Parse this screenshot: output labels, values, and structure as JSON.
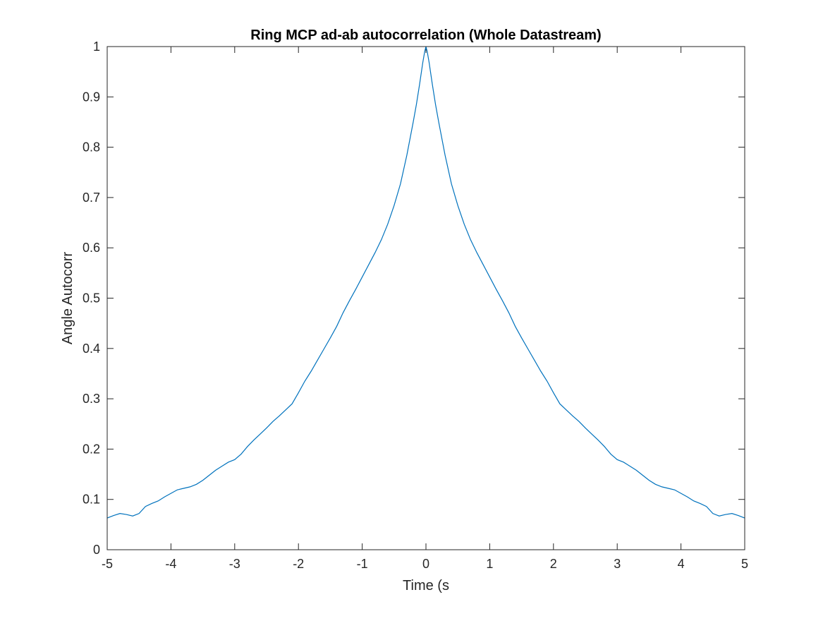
{
  "chart_data": {
    "type": "line",
    "title": "Ring MCP ad-ab autocorrelation (Whole Datastream)",
    "xlabel": "Time (s",
    "ylabel": "Angle Autocorr",
    "xlim": [
      -5,
      5
    ],
    "ylim": [
      0,
      1
    ],
    "xticks": [
      -5,
      -4,
      -3,
      -2,
      -1,
      0,
      1,
      2,
      3,
      4,
      5
    ],
    "xtick_labels": [
      "-5",
      "-4",
      "-3",
      "-2",
      "-1",
      "0",
      "1",
      "2",
      "3",
      "4",
      "5"
    ],
    "yticks": [
      0,
      0.1,
      0.2,
      0.3,
      0.4,
      0.5,
      0.6,
      0.7,
      0.8,
      0.9,
      1
    ],
    "ytick_labels": [
      "0",
      "0.1",
      "0.2",
      "0.3",
      "0.4",
      "0.5",
      "0.6",
      "0.7",
      "0.8",
      "0.9",
      "1"
    ],
    "grid": false,
    "box": true,
    "line_color": "#0072bd",
    "series": [
      {
        "x": [
          -5,
          -4.9,
          -4.8,
          -4.7,
          -4.6,
          -4.5,
          -4.4,
          -4.3,
          -4.2,
          -4.1,
          -4,
          -3.9,
          -3.8,
          -3.7,
          -3.6,
          -3.5,
          -3.4,
          -3.3,
          -3.2,
          -3.1,
          -3,
          -2.9,
          -2.8,
          -2.7,
          -2.6,
          -2.5,
          -2.4,
          -2.3,
          -2.2,
          -2.1,
          -2,
          -1.9,
          -1.8,
          -1.7,
          -1.6,
          -1.5,
          -1.4,
          -1.3,
          -1.2,
          -1.1,
          -1,
          -0.9,
          -0.8,
          -0.7,
          -0.6,
          -0.5,
          -0.4,
          -0.3,
          -0.2,
          -0.15,
          -0.1,
          -0.05,
          -0.02,
          0,
          0.02,
          0.05,
          0.1,
          0.15,
          0.2,
          0.3,
          0.4,
          0.5,
          0.6,
          0.7,
          0.8,
          0.9,
          1,
          1.1,
          1.2,
          1.3,
          1.4,
          1.5,
          1.6,
          1.7,
          1.8,
          1.9,
          2,
          2.1,
          2.2,
          2.3,
          2.4,
          2.5,
          2.6,
          2.7,
          2.8,
          2.9,
          3,
          3.1,
          3.2,
          3.3,
          3.4,
          3.5,
          3.6,
          3.7,
          3.8,
          3.9,
          4,
          4.1,
          4.2,
          4.3,
          4.4,
          4.5,
          4.6,
          4.7,
          4.8,
          4.9,
          5
        ],
        "y": [
          0.063,
          0.068,
          0.072,
          0.07,
          0.067,
          0.072,
          0.086,
          0.092,
          0.097,
          0.105,
          0.112,
          0.119,
          0.122,
          0.125,
          0.13,
          0.138,
          0.148,
          0.158,
          0.166,
          0.174,
          0.179,
          0.19,
          0.205,
          0.218,
          0.23,
          0.242,
          0.255,
          0.266,
          0.278,
          0.29,
          0.312,
          0.335,
          0.355,
          0.377,
          0.399,
          0.421,
          0.444,
          0.471,
          0.495,
          0.518,
          0.542,
          0.566,
          0.59,
          0.616,
          0.647,
          0.684,
          0.727,
          0.784,
          0.85,
          0.885,
          0.925,
          0.968,
          0.99,
          1.0,
          0.99,
          0.968,
          0.925,
          0.885,
          0.85,
          0.784,
          0.727,
          0.684,
          0.647,
          0.616,
          0.59,
          0.566,
          0.542,
          0.518,
          0.495,
          0.471,
          0.444,
          0.421,
          0.399,
          0.377,
          0.355,
          0.335,
          0.312,
          0.29,
          0.278,
          0.266,
          0.255,
          0.242,
          0.23,
          0.218,
          0.205,
          0.19,
          0.179,
          0.174,
          0.166,
          0.158,
          0.148,
          0.138,
          0.13,
          0.125,
          0.122,
          0.119,
          0.112,
          0.105,
          0.097,
          0.092,
          0.086,
          0.072,
          0.067,
          0.07,
          0.072,
          0.068,
          0.063
        ]
      }
    ]
  }
}
